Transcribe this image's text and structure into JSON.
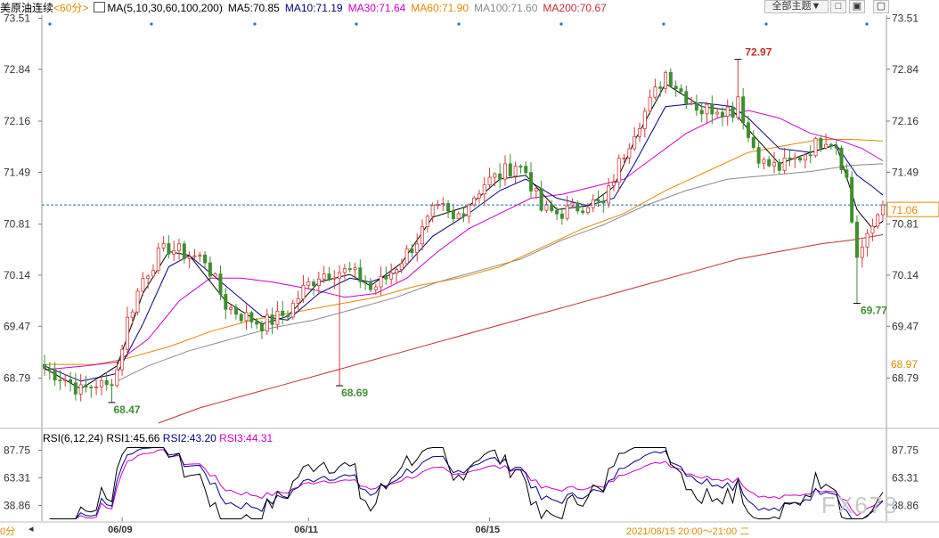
{
  "header": {
    "symbol": "美原油连续",
    "period": "<60分>",
    "ma_icon": "chart-settings-icon",
    "ma_params": "MA(5,10,30,60,100,200)",
    "ma5": "MA5:70.85",
    "ma10": "MA10:71.19",
    "ma30": "MA30:71.64",
    "ma60": "MA60:71.90",
    "ma100": "MA100:71.60",
    "ma200": "MA200:70.67",
    "theme_button": "全部主题▼",
    "icon1": "restore-icon",
    "icon2": "fullscreen-icon",
    "icon3": "close-icon"
  },
  "rsi_header": {
    "params": "RSI(6,12,24)",
    "rsi1": "RSI1:45.66",
    "rsi2": "RSI2:43.20",
    "rsi3": "RSI3:44.31"
  },
  "watermark": "FX678",
  "footer": {
    "period_label": "0分",
    "status": "2021/06/15 20:00～21:00 二",
    "scroll_left_icon": "arrow-left-icon"
  },
  "colors": {
    "up": "#d23b3b",
    "down": "#3f8f2f",
    "ma5": "#000000",
    "ma10": "#000080",
    "ma30": "#cc00cc",
    "ma60": "#e08a00",
    "ma100": "#8a8a8a",
    "ma200": "#c03030",
    "rsi1": "#000000",
    "rsi2": "#000080",
    "rsi3": "#cc00cc"
  },
  "chart_data": [
    {
      "type": "candlestick",
      "title": "",
      "y_ticks": [
        "73.51",
        "72.84",
        "72.16",
        "71.49",
        "70.81",
        "70.14",
        "69.47",
        "68.79"
      ],
      "ylim": [
        68.2,
        73.55
      ],
      "x_ticks": [
        "06/09",
        "06/11",
        "06/15"
      ],
      "current_price": "71.06",
      "ma60_value_label": "68.97",
      "annotations": [
        {
          "text": "68.47",
          "value": 68.47
        },
        {
          "text": "68.69",
          "value": 68.69
        },
        {
          "text": "72.97",
          "value": 72.97
        },
        {
          "text": "69.77",
          "value": 69.77
        }
      ],
      "anchors": [
        [
          0,
          68.92
        ],
        [
          4,
          68.78
        ],
        [
          7,
          68.62
        ],
        [
          10,
          68.72
        ],
        [
          12,
          68.67
        ],
        [
          14,
          68.9
        ],
        [
          16,
          69.55
        ],
        [
          19,
          70.1
        ],
        [
          22,
          70.4
        ],
        [
          24,
          70.5
        ],
        [
          28,
          70.4
        ],
        [
          31,
          70.35
        ],
        [
          35,
          69.75
        ],
        [
          38,
          69.62
        ],
        [
          42,
          69.5
        ],
        [
          44,
          69.55
        ],
        [
          47,
          69.65
        ],
        [
          50,
          69.95
        ],
        [
          53,
          70.15
        ],
        [
          56,
          70.2
        ],
        [
          59,
          70.18
        ],
        [
          62,
          70.05
        ],
        [
          63,
          69.95
        ],
        [
          66,
          70.1
        ],
        [
          69,
          70.35
        ],
        [
          72,
          70.6
        ],
        [
          75,
          70.95
        ],
        [
          77,
          71.0
        ],
        [
          79,
          70.85
        ],
        [
          82,
          71.1
        ],
        [
          85,
          71.35
        ],
        [
          88,
          71.45
        ],
        [
          91,
          71.6
        ],
        [
          93,
          71.5
        ],
        [
          96,
          71.0
        ],
        [
          99,
          70.95
        ],
        [
          102,
          71.0
        ],
        [
          105,
          71.1
        ],
        [
          108,
          71.05
        ],
        [
          111,
          71.6
        ],
        [
          114,
          72.05
        ],
        [
          117,
          72.4
        ],
        [
          120,
          72.8
        ],
        [
          123,
          72.55
        ],
        [
          127,
          72.3
        ],
        [
          130,
          72.35
        ],
        [
          133,
          72.3
        ],
        [
          134,
          72.5
        ],
        [
          136,
          71.95
        ],
        [
          139,
          71.6
        ],
        [
          142,
          71.55
        ],
        [
          145,
          71.65
        ],
        [
          148,
          71.8
        ],
        [
          151,
          71.95
        ],
        [
          153,
          71.85
        ],
        [
          155,
          71.4
        ],
        [
          156,
          70.85
        ],
        [
          157,
          70.4
        ],
        [
          159,
          70.6
        ],
        [
          161,
          70.95
        ],
        [
          162,
          71.06
        ]
      ],
      "spikes": [
        {
          "bar": 13,
          "low": 68.47
        },
        {
          "bar": 57,
          "low": 68.69
        },
        {
          "bar": 134,
          "high": 72.97
        },
        {
          "bar": 157,
          "low": 69.77
        }
      ],
      "ma_lines": {
        "ma5": [
          [
            0,
            68.92
          ],
          [
            7,
            68.65
          ],
          [
            14,
            68.95
          ],
          [
            19,
            69.9
          ],
          [
            24,
            70.45
          ],
          [
            28,
            70.4
          ],
          [
            35,
            69.8
          ],
          [
            42,
            69.5
          ],
          [
            47,
            69.6
          ],
          [
            53,
            70.05
          ],
          [
            59,
            70.15
          ],
          [
            63,
            70.0
          ],
          [
            69,
            70.3
          ],
          [
            75,
            70.9
          ],
          [
            82,
            71.05
          ],
          [
            88,
            71.4
          ],
          [
            93,
            71.45
          ],
          [
            99,
            71.0
          ],
          [
            105,
            71.05
          ],
          [
            110,
            71.3
          ],
          [
            114,
            71.9
          ],
          [
            120,
            72.65
          ],
          [
            127,
            72.35
          ],
          [
            133,
            72.3
          ],
          [
            136,
            72.05
          ],
          [
            142,
            71.6
          ],
          [
            148,
            71.75
          ],
          [
            153,
            71.85
          ],
          [
            157,
            71.0
          ],
          [
            160,
            70.75
          ],
          [
            162,
            70.85
          ]
        ],
        "ma10": [
          [
            0,
            68.95
          ],
          [
            7,
            68.75
          ],
          [
            14,
            68.85
          ],
          [
            19,
            69.5
          ],
          [
            24,
            70.25
          ],
          [
            28,
            70.4
          ],
          [
            35,
            70.0
          ],
          [
            42,
            69.6
          ],
          [
            47,
            69.55
          ],
          [
            53,
            69.9
          ],
          [
            59,
            70.1
          ],
          [
            63,
            70.05
          ],
          [
            69,
            70.2
          ],
          [
            75,
            70.65
          ],
          [
            82,
            70.95
          ],
          [
            88,
            71.25
          ],
          [
            93,
            71.4
          ],
          [
            99,
            71.15
          ],
          [
            105,
            71.05
          ],
          [
            110,
            71.15
          ],
          [
            114,
            71.6
          ],
          [
            120,
            72.35
          ],
          [
            127,
            72.4
          ],
          [
            133,
            72.35
          ],
          [
            136,
            72.2
          ],
          [
            142,
            71.8
          ],
          [
            148,
            71.75
          ],
          [
            153,
            71.85
          ],
          [
            157,
            71.45
          ],
          [
            160,
            71.3
          ],
          [
            162,
            71.19
          ]
        ],
        "ma30": [
          [
            0,
            68.9
          ],
          [
            8,
            68.95
          ],
          [
            14,
            69.0
          ],
          [
            20,
            69.3
          ],
          [
            26,
            69.8
          ],
          [
            32,
            70.1
          ],
          [
            38,
            70.1
          ],
          [
            44,
            70.05
          ],
          [
            52,
            69.95
          ],
          [
            58,
            69.85
          ],
          [
            64,
            69.9
          ],
          [
            70,
            70.1
          ],
          [
            76,
            70.45
          ],
          [
            82,
            70.75
          ],
          [
            88,
            70.95
          ],
          [
            94,
            71.15
          ],
          [
            100,
            71.2
          ],
          [
            106,
            71.3
          ],
          [
            112,
            71.4
          ],
          [
            118,
            71.7
          ],
          [
            124,
            72.0
          ],
          [
            130,
            72.2
          ],
          [
            136,
            72.3
          ],
          [
            142,
            72.2
          ],
          [
            148,
            72.0
          ],
          [
            154,
            71.9
          ],
          [
            158,
            71.8
          ],
          [
            162,
            71.64
          ]
        ],
        "ma60": [
          [
            0,
            68.97
          ],
          [
            10,
            68.97
          ],
          [
            16,
            69.05
          ],
          [
            24,
            69.2
          ],
          [
            32,
            69.4
          ],
          [
            40,
            69.55
          ],
          [
            48,
            69.65
          ],
          [
            56,
            69.75
          ],
          [
            64,
            69.85
          ],
          [
            72,
            70.0
          ],
          [
            80,
            70.1
          ],
          [
            88,
            70.25
          ],
          [
            96,
            70.5
          ],
          [
            104,
            70.75
          ],
          [
            112,
            70.95
          ],
          [
            120,
            71.25
          ],
          [
            128,
            71.5
          ],
          [
            136,
            71.75
          ],
          [
            144,
            71.85
          ],
          [
            150,
            71.92
          ],
          [
            156,
            71.92
          ],
          [
            162,
            71.9
          ]
        ],
        "ma100": [
          [
            14,
            68.75
          ],
          [
            20,
            68.95
          ],
          [
            28,
            69.15
          ],
          [
            36,
            69.3
          ],
          [
            44,
            69.45
          ],
          [
            52,
            69.55
          ],
          [
            60,
            69.7
          ],
          [
            68,
            69.85
          ],
          [
            76,
            70.05
          ],
          [
            84,
            70.2
          ],
          [
            92,
            70.35
          ],
          [
            100,
            70.6
          ],
          [
            108,
            70.8
          ],
          [
            116,
            71.05
          ],
          [
            124,
            71.25
          ],
          [
            132,
            71.4
          ],
          [
            140,
            71.45
          ],
          [
            148,
            71.5
          ],
          [
            156,
            71.58
          ],
          [
            162,
            71.6
          ]
        ],
        "ma200": [
          [
            22,
            68.2
          ],
          [
            30,
            68.4
          ],
          [
            38,
            68.55
          ],
          [
            46,
            68.7
          ],
          [
            54,
            68.85
          ],
          [
            62,
            69.0
          ],
          [
            70,
            69.15
          ],
          [
            78,
            69.3
          ],
          [
            86,
            69.45
          ],
          [
            94,
            69.6
          ],
          [
            102,
            69.75
          ],
          [
            110,
            69.9
          ],
          [
            118,
            70.05
          ],
          [
            126,
            70.2
          ],
          [
            134,
            70.35
          ],
          [
            142,
            70.45
          ],
          [
            150,
            70.55
          ],
          [
            156,
            70.6
          ],
          [
            162,
            70.67
          ]
        ]
      }
    },
    {
      "type": "line",
      "title": "RSI(6,12,24)",
      "y_ticks": [
        "87.75",
        "63.31",
        "38.86"
      ],
      "ylim": [
        25,
        92
      ],
      "series": [
        {
          "name": "RSI1",
          "value_label": "45.66"
        },
        {
          "name": "RSI2",
          "value_label": "43.20"
        },
        {
          "name": "RSI3",
          "value_label": "44.31"
        }
      ]
    }
  ]
}
